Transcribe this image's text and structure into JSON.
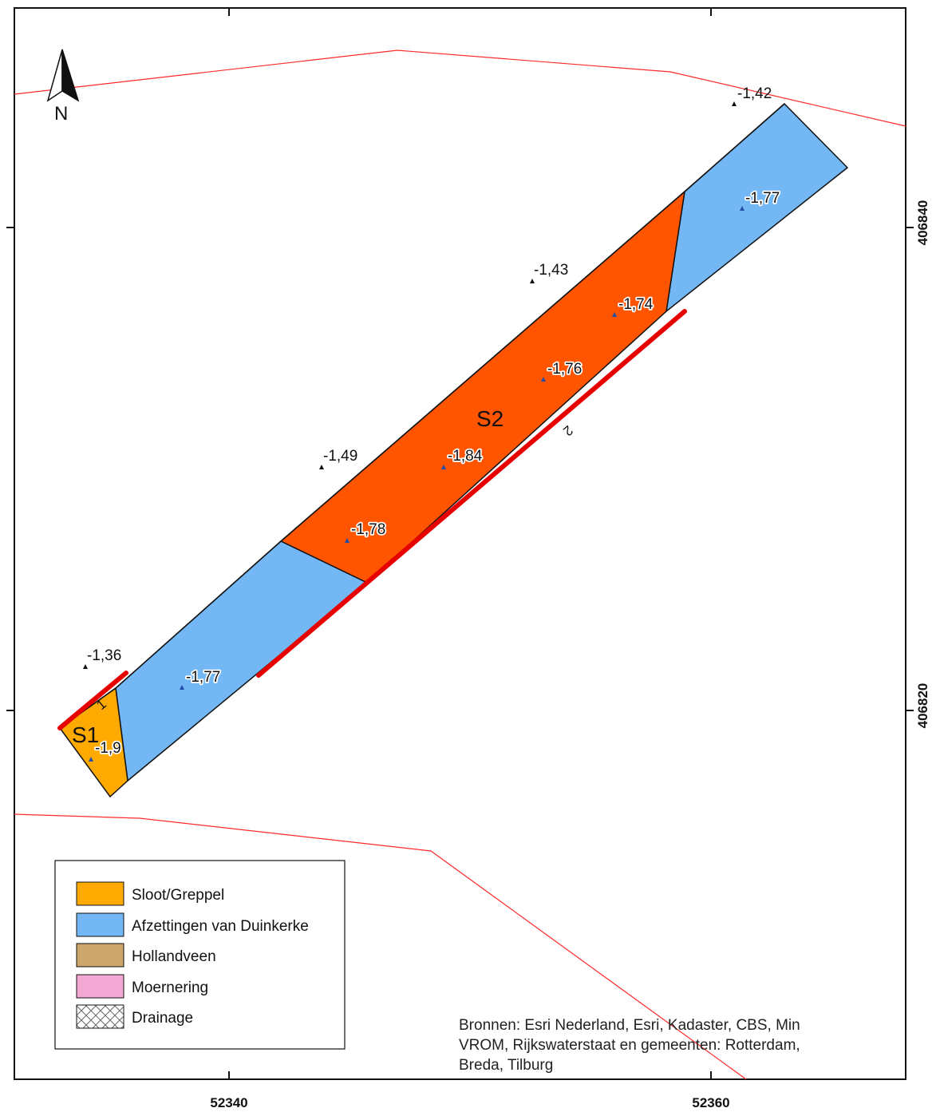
{
  "north_arrow": {
    "label": "N"
  },
  "zones": [
    {
      "label": "S1"
    },
    {
      "label": "S2"
    }
  ],
  "trenches": [
    {
      "label": "1"
    },
    {
      "label": "2"
    }
  ],
  "points": [
    {
      "value": "-1,42"
    },
    {
      "value": "-1,77"
    },
    {
      "value": "-1,43"
    },
    {
      "value": "-1,74"
    },
    {
      "value": "-1,76"
    },
    {
      "value": "-1,84"
    },
    {
      "value": "-1,49"
    },
    {
      "value": "-1,78"
    },
    {
      "value": "-1,36"
    },
    {
      "value": "-1,77"
    },
    {
      "value": "-1,9"
    }
  ],
  "axes": {
    "x_ticks": [
      "52340",
      "52360"
    ],
    "y_ticks": [
      "406840",
      "406820"
    ]
  },
  "legend": {
    "items": [
      {
        "label": "Sloot/Greppel",
        "color": "#ffaa00"
      },
      {
        "label": "Afzettingen van Duinkerke",
        "color": "#73b8f5"
      },
      {
        "label": "Hollandveen",
        "color": "#cda66b"
      },
      {
        "label": "Moernering",
        "color": "#f4a9d4"
      },
      {
        "label": "Drainage",
        "color": "hatch"
      }
    ]
  },
  "source": {
    "lines": [
      "Bronnen: Esri Nederland, Esri, Kadaster, CBS, Min",
      "VROM, Rijkswaterstaat en gemeenten: Rotterdam,",
      "Breda, Tilburg"
    ]
  },
  "colors": {
    "parcel_line": "#ff2a2a",
    "trench_line": "#e60000",
    "orange_zone": "#ff5500",
    "blue_zone": "#73b8f5",
    "sloot_zone": "#ffaa00"
  }
}
